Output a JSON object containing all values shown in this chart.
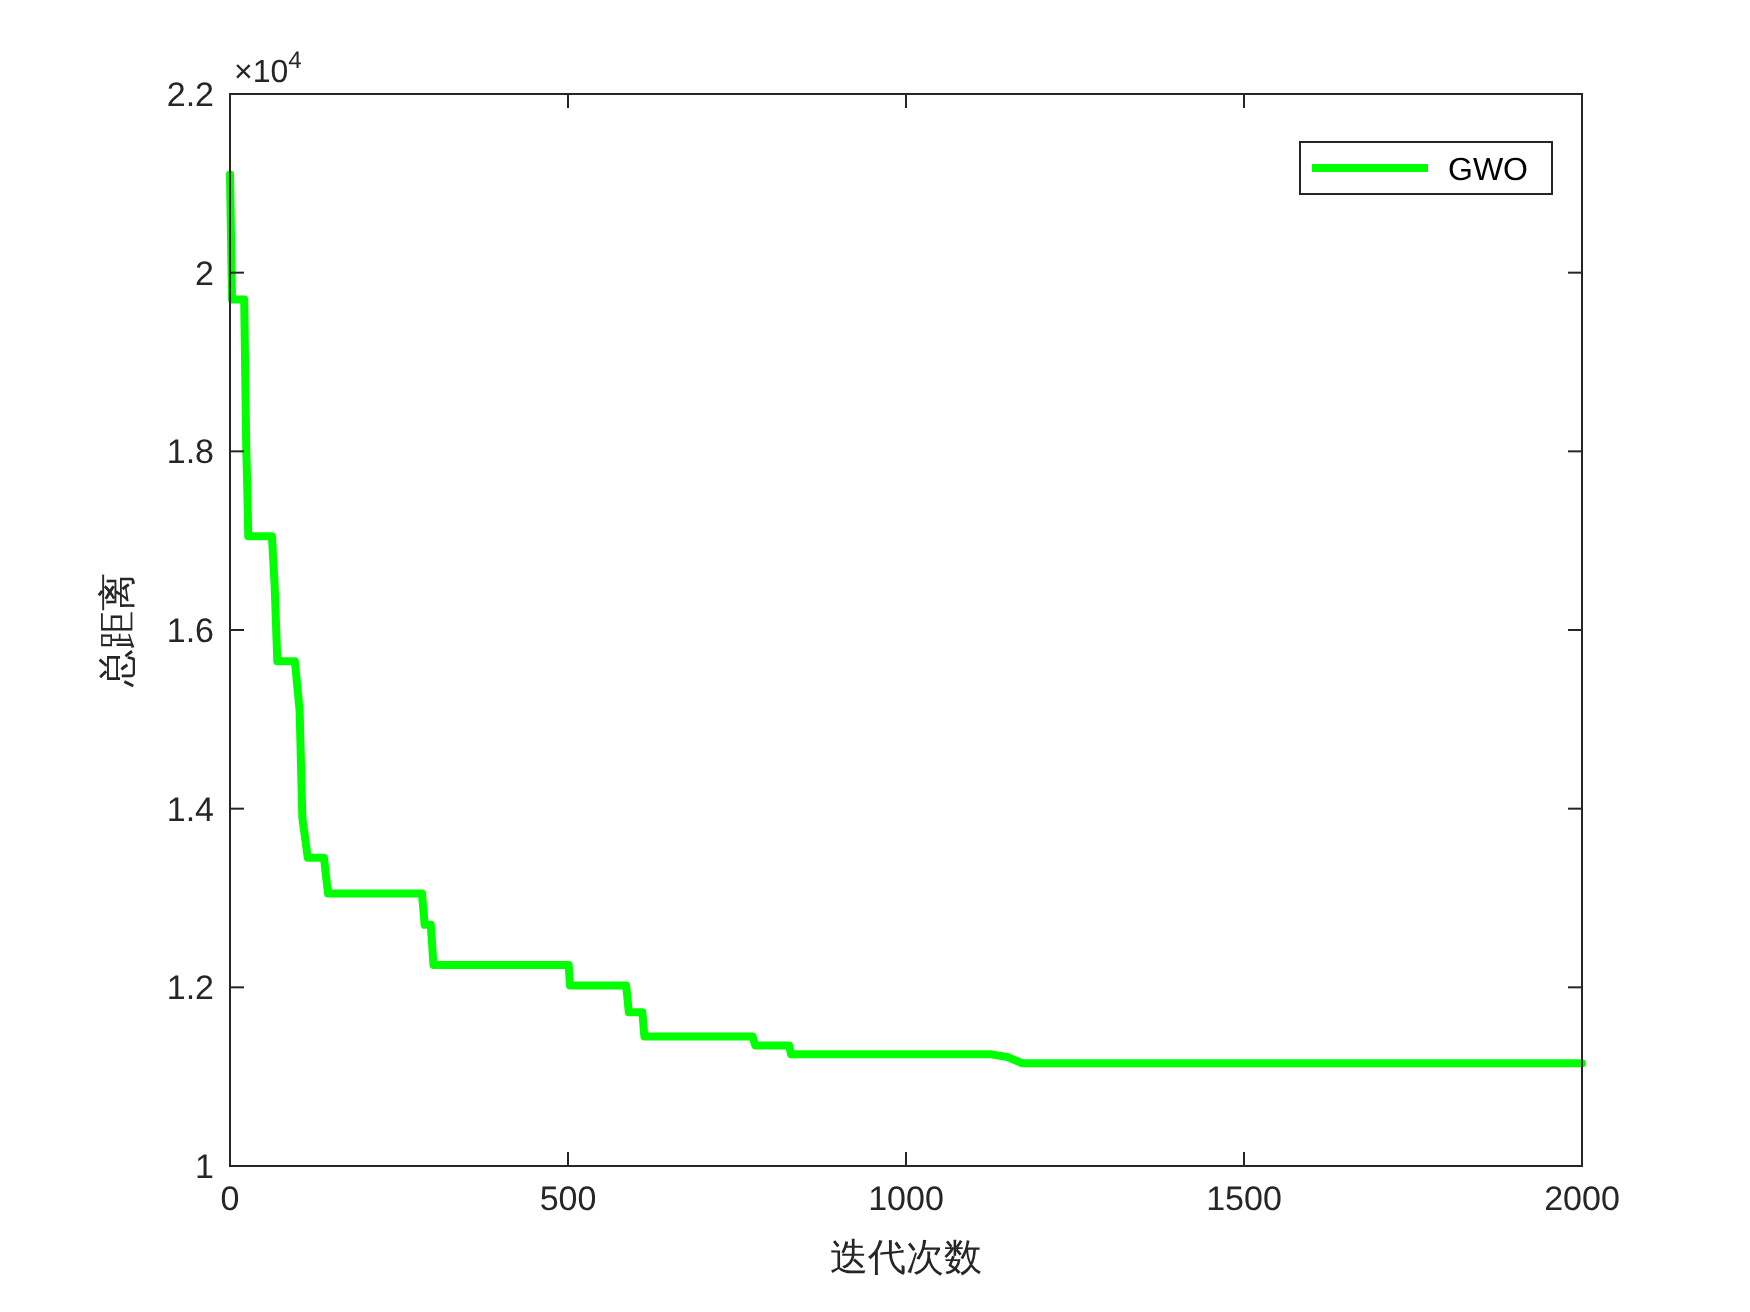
{
  "chart_data": {
    "type": "line",
    "xlabel": "迭代次数",
    "ylabel": "总距离",
    "annotations": [
      "×10$^{4}$"
    ],
    "x": [
      0,
      3,
      21,
      24,
      26,
      27,
      62,
      66,
      70,
      96,
      103,
      107,
      115,
      139,
      145,
      284,
      288,
      297,
      301,
      501,
      503,
      586,
      590,
      610,
      613,
      773,
      777,
      827,
      830,
      1126,
      1150,
      1172,
      2000
    ],
    "series": [
      {
        "name": "GWO",
        "color": "#00ff00",
        "values": [
          2.11,
          1.97,
          1.97,
          1.805,
          1.745,
          1.705,
          1.705,
          1.65,
          1.565,
          1.565,
          1.51,
          1.39,
          1.345,
          1.345,
          1.305,
          1.305,
          1.27,
          1.27,
          1.225,
          1.225,
          1.202,
          1.202,
          1.172,
          1.172,
          1.145,
          1.145,
          1.135,
          1.135,
          1.125,
          1.125,
          1.122,
          1.115,
          1.115
        ]
      }
    ],
    "xlim": [
      0,
      2000
    ],
    "ylim": [
      1,
      2.2
    ],
    "xticks": [
      0,
      500,
      1000,
      1500,
      2000
    ],
    "yticks": [
      1,
      1.2,
      1.4,
      1.6,
      1.8,
      2,
      2.2
    ],
    "legend": "top right",
    "line_style": "solid"
  }
}
